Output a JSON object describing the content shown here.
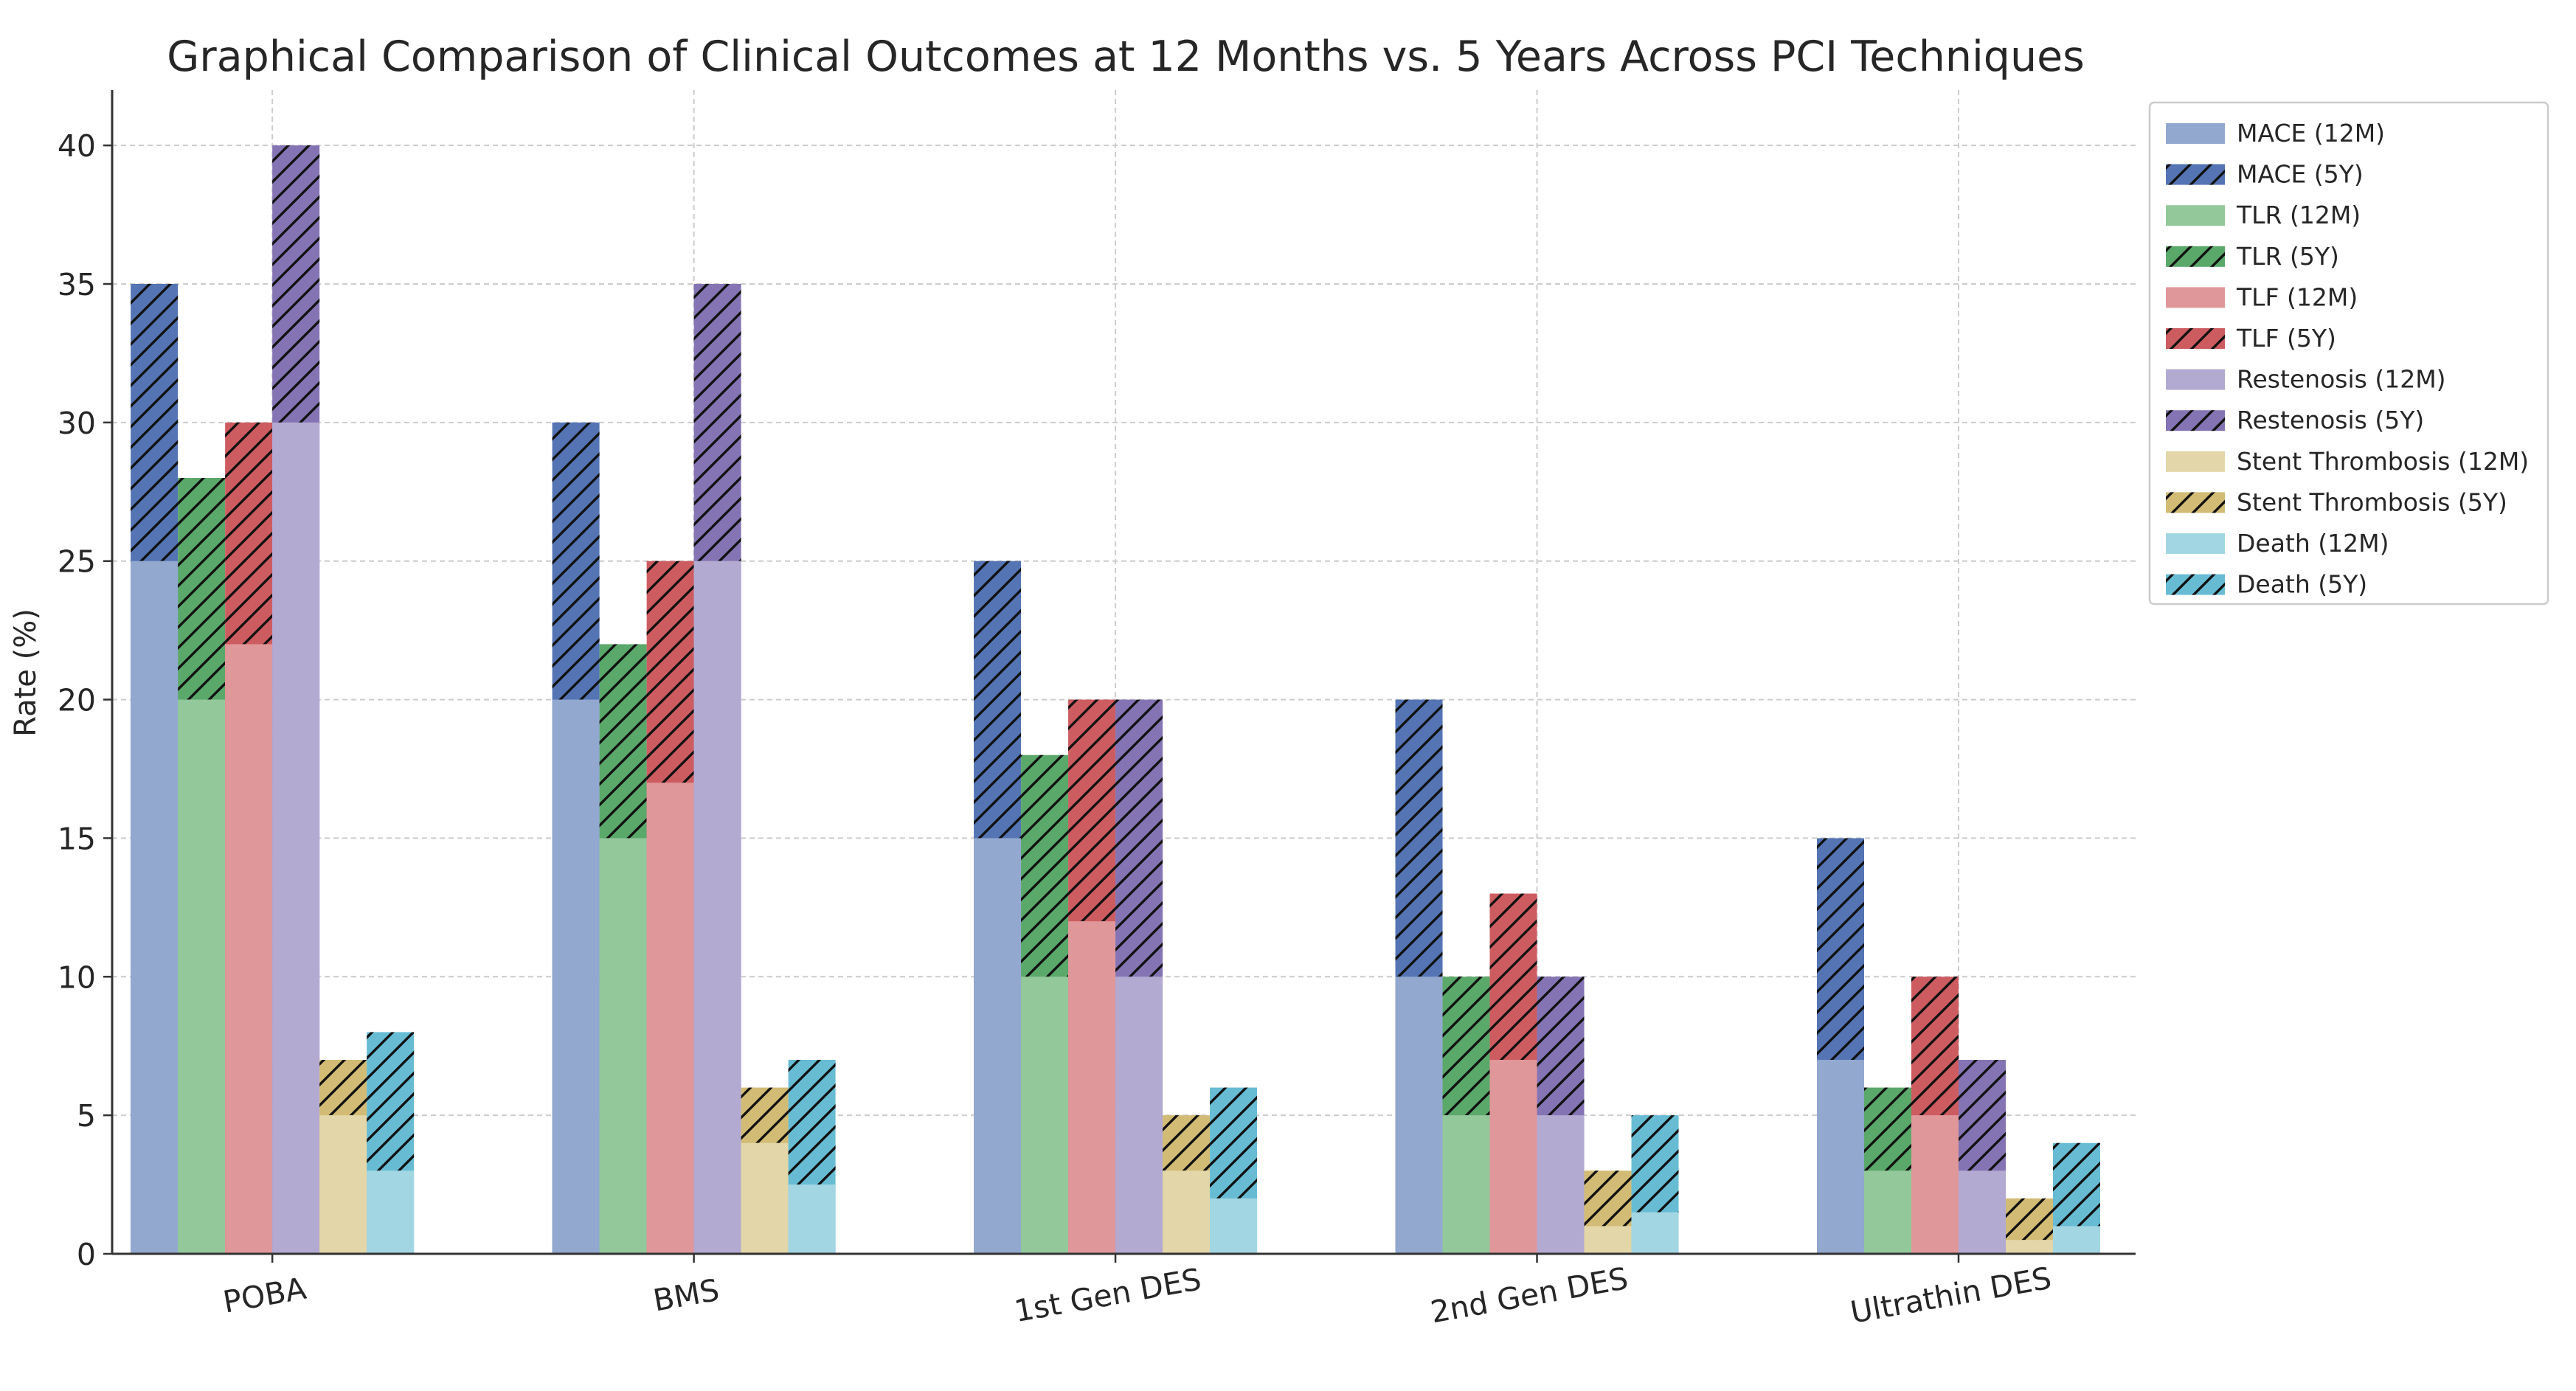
{
  "chart_data": {
    "type": "bar",
    "title": "Graphical Comparison of Clinical Outcomes at 12 Months vs. 5 Years Across PCI Techniques",
    "xlabel": "",
    "ylabel": "Rate (%)",
    "ylim": [
      0,
      42
    ],
    "yticks": [
      0,
      5,
      10,
      15,
      20,
      25,
      30,
      35,
      40
    ],
    "grid": true,
    "legend_position": "upper-right-outside",
    "categories": [
      "POBA",
      "BMS",
      "1st Gen DES",
      "2nd Gen DES",
      "Ultrathin DES"
    ],
    "series": [
      {
        "name": "MACE",
        "legend_12m": "MACE (12M)",
        "legend_5y": "MACE (5Y)",
        "color_12m": "#92a8cf",
        "color_5y": "#5474b4",
        "values_12m": [
          25,
          20,
          15,
          10,
          7
        ],
        "values_5y": [
          35,
          30,
          25,
          20,
          15
        ]
      },
      {
        "name": "TLR",
        "legend_12m": "TLR (12M)",
        "legend_5y": "TLR (5Y)",
        "color_12m": "#93c89b",
        "color_5y": "#5aa86a",
        "values_12m": [
          20,
          15,
          10,
          5,
          3
        ],
        "values_5y": [
          28,
          22,
          18,
          10,
          6
        ]
      },
      {
        "name": "TLF",
        "legend_12m": "TLF (12M)",
        "legend_5y": "TLF (5Y)",
        "color_12m": "#e0979a",
        "color_5y": "#cd5c61",
        "values_12m": [
          22,
          17,
          12,
          7,
          5
        ],
        "values_5y": [
          30,
          25,
          20,
          13,
          10
        ]
      },
      {
        "name": "Restenosis",
        "legend_12m": "Restenosis (12M)",
        "legend_5y": "Restenosis (5Y)",
        "color_12m": "#b3aad2",
        "color_5y": "#8574b4",
        "values_12m": [
          30,
          25,
          10,
          5,
          3
        ],
        "values_5y": [
          40,
          35,
          20,
          10,
          7
        ]
      },
      {
        "name": "Stent Thrombosis",
        "legend_12m": "Stent Thrombosis (12M)",
        "legend_5y": "Stent Thrombosis (5Y)",
        "color_12m": "#e3d6a8",
        "color_5y": "#d2bb74",
        "values_12m": [
          5,
          4,
          3,
          1,
          0.5
        ],
        "values_5y": [
          7,
          6,
          5,
          3,
          2
        ]
      },
      {
        "name": "Death",
        "legend_12m": "Death (12M)",
        "legend_5y": "Death (5Y)",
        "color_12m": "#a2d6e3",
        "color_5y": "#67bcd4",
        "values_12m": [
          3,
          2.5,
          2,
          1.5,
          1
        ],
        "values_5y": [
          8,
          7,
          6,
          5,
          4
        ]
      }
    ]
  }
}
